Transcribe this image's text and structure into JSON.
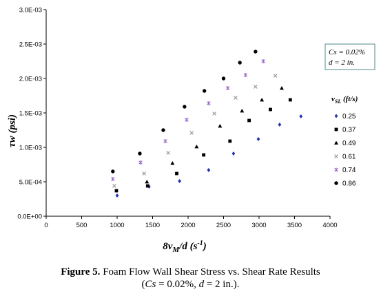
{
  "chart_data": {
    "type": "scatter",
    "xlabel_parts": [
      "8v",
      "M",
      "/d (s",
      "-1",
      ")"
    ],
    "ylabel": "τw (psi)",
    "xlim": [
      0,
      4000
    ],
    "ylim": [
      0,
      0.003
    ],
    "x_ticks": [
      "0",
      "500",
      "1000",
      "1500",
      "2000",
      "2500",
      "3000",
      "3500",
      "4000"
    ],
    "y_ticks": [
      "0.0E+00",
      "5.0E-04",
      "1.0E-03",
      "1.5E-03",
      "2.0E-03",
      "2.5E-03",
      "3.0E-03"
    ],
    "grid": false,
    "legend_title_parts": [
      "v",
      "SL",
      " (ft/s)"
    ],
    "legend_placement": "right",
    "note_lines": [
      "Cs = 0.02%",
      "d = 2 in."
    ],
    "series": [
      {
        "name": "0.25",
        "marker": "diamond",
        "color": "#2233aa",
        "x": [
          1000,
          1450,
          1880,
          2290,
          2640,
          2990,
          3290,
          3590
        ],
        "y": [
          0.0003,
          0.00043,
          0.00051,
          0.00067,
          0.00091,
          0.00112,
          0.00133,
          0.00145
        ]
      },
      {
        "name": "0.37",
        "marker": "square",
        "color": "#000000",
        "x": [
          990,
          1430,
          1840,
          2220,
          2590,
          2860,
          3160,
          3440
        ],
        "y": [
          0.00037,
          0.00044,
          0.00062,
          0.00089,
          0.00109,
          0.00139,
          0.00155,
          0.00169
        ]
      },
      {
        "name": "0.49",
        "marker": "triangle",
        "color": "#000000",
        "x": [
          1420,
          1780,
          2120,
          2450,
          2760,
          3040,
          3320
        ],
        "y": [
          0.0005,
          0.00077,
          0.00101,
          0.00131,
          0.00153,
          0.00169,
          0.00186
        ]
      },
      {
        "name": "0.61",
        "marker": "x",
        "color": "#999999",
        "x": [
          960,
          1380,
          1720,
          2050,
          2370,
          2670,
          2950,
          3230
        ],
        "y": [
          0.00044,
          0.00062,
          0.00092,
          0.00121,
          0.00149,
          0.00172,
          0.00188,
          0.00204
        ]
      },
      {
        "name": "0.74",
        "marker": "star",
        "color": "#9966cc",
        "x": [
          940,
          1330,
          1680,
          1980,
          2290,
          2560,
          2810,
          3060
        ],
        "y": [
          0.00054,
          0.00078,
          0.00109,
          0.0014,
          0.00164,
          0.00186,
          0.00205,
          0.00225
        ]
      },
      {
        "name": "0.86",
        "marker": "circle",
        "color": "#000000",
        "x": [
          940,
          1320,
          1650,
          1950,
          2230,
          2500,
          2730,
          2950
        ],
        "y": [
          0.00065,
          0.00091,
          0.00125,
          0.00159,
          0.00182,
          0.002,
          0.00223,
          0.00239
        ]
      }
    ]
  },
  "caption": {
    "label": "Figure 5.",
    "line1_rest": " Foam Flow Wall Shear Stress vs. Shear Rate Results",
    "line2_open": "(",
    "line2_cs": "Cs",
    "line2_mid": " = 0.02%, ",
    "line2_d": "d",
    "line2_end": " = 2 in.)."
  }
}
